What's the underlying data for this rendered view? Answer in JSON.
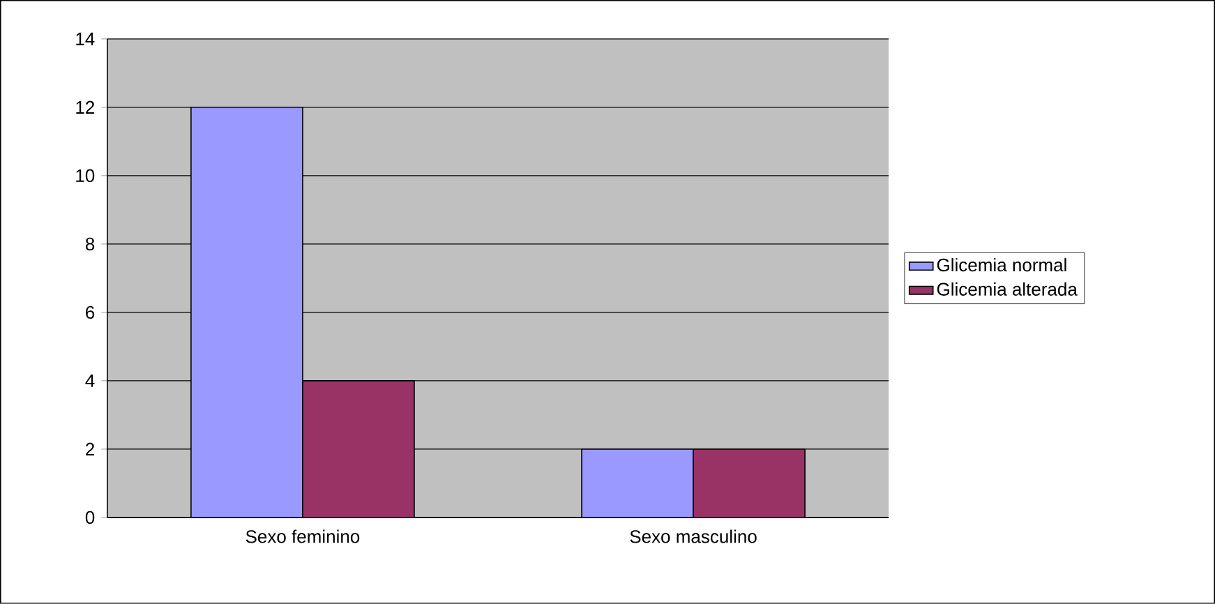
{
  "chart_data": {
    "type": "bar",
    "categories": [
      "Sexo feminino",
      "Sexo masculino"
    ],
    "series": [
      {
        "name": "Glicemia normal",
        "color": "#9999ff",
        "values": [
          12,
          2
        ]
      },
      {
        "name": "Glicemia alterada",
        "color": "#993366",
        "values": [
          4,
          2
        ]
      }
    ],
    "ylim": [
      0,
      14
    ],
    "yticks": [
      0,
      2,
      4,
      6,
      8,
      10,
      12,
      14
    ],
    "grid": "y",
    "legend": "right"
  }
}
